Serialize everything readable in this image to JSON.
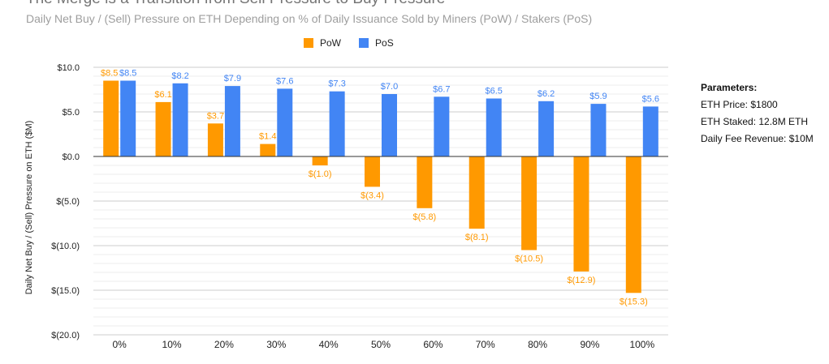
{
  "title": "The Merge is a Transition from Sell Pressure to Buy Pressure",
  "subtitle": "Daily Net Buy / (Sell) Pressure on ETH Depending on % of Daily Issuance Sold by Miners (PoW) / Stakers (PoS)",
  "legend": {
    "pow": "PoW",
    "pos": "PoS"
  },
  "parameters": {
    "heading": "Parameters:",
    "lines": [
      "ETH Price: $1800",
      "ETH Staked: 12.8M ETH",
      "Daily Fee Revenue: $10M"
    ]
  },
  "colors": {
    "pow": "#ff9900",
    "pos": "#4285f4",
    "grid": "#dddddd",
    "axis": "#333333"
  },
  "chart_data": {
    "type": "bar",
    "ylabel": "Daily Net Buy / (Sell) Pressure on ETH ($M)",
    "xlabel": "",
    "ylim": [
      -20,
      10
    ],
    "yticks": [
      10,
      5,
      0,
      -5,
      -10,
      -15,
      -20
    ],
    "ytick_labels": [
      "$10.0",
      "$5.0",
      "$0.0",
      "$(5.0)",
      "$(10.0)",
      "$(15.0)",
      "$(20.0)"
    ],
    "categories": [
      "0%",
      "10%",
      "20%",
      "30%",
      "40%",
      "50%",
      "60%",
      "70%",
      "80%",
      "90%",
      "100%"
    ],
    "series": [
      {
        "name": "PoW",
        "values": [
          8.5,
          6.1,
          3.7,
          1.4,
          -1.0,
          -3.4,
          -5.8,
          -8.1,
          -10.5,
          -12.9,
          -15.3
        ],
        "labels": [
          "$8.5",
          "$6.1",
          "$3.7",
          "$1.4",
          "$(1.0)",
          "$(3.4)",
          "$(5.8)",
          "$(8.1)",
          "$(10.5)",
          "$(12.9)",
          "$(15.3)"
        ]
      },
      {
        "name": "PoS",
        "values": [
          8.5,
          8.2,
          7.9,
          7.6,
          7.3,
          7.0,
          6.7,
          6.5,
          6.2,
          5.9,
          5.6
        ],
        "labels": [
          "$8.5",
          "$8.2",
          "$7.9",
          "$7.6",
          "$7.3",
          "$7.0",
          "$6.7",
          "$6.5",
          "$6.2",
          "$5.9",
          "$5.6"
        ]
      }
    ],
    "grid": true,
    "legend_position": "top"
  }
}
